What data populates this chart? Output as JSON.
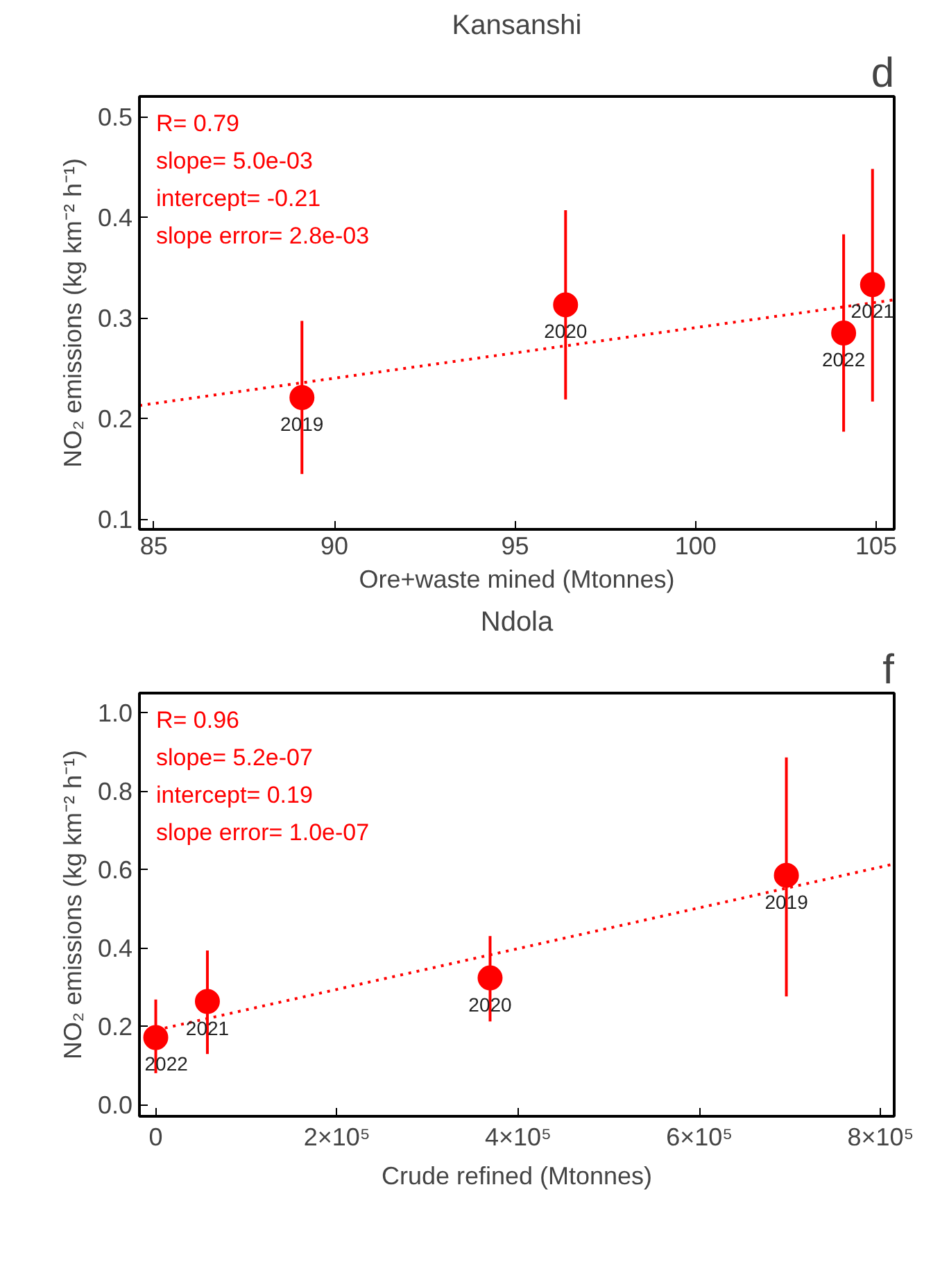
{
  "chart_data": [
    {
      "type": "scatter",
      "title": "Kansanshi",
      "xlabel": "Ore+waste mined (Mtonnes)",
      "ylabel": "NO₂ emissions (kg km⁻² h⁻¹)",
      "xlim": [
        84.6,
        105.5
      ],
      "ylim": [
        0.09,
        0.52
      ],
      "xticks": [
        85,
        90,
        95,
        100,
        105
      ],
      "yticks": [
        0.1,
        0.2,
        0.3,
        0.4,
        0.5
      ],
      "grid": false,
      "series": [
        {
          "marker": "circle",
          "color": "#ff0000",
          "x": [
            89.1,
            96.4,
            104.9,
            104.1
          ],
          "values": [
            0.221,
            0.313,
            0.333,
            0.285
          ],
          "errors": [
            [
              0.145,
              0.297
            ],
            [
              0.219,
              0.407
            ],
            [
              0.217,
              0.448
            ],
            [
              0.187,
              0.383
            ]
          ]
        },
        {
          "type": "line",
          "color": "#ff0000",
          "line_style": "dotted",
          "x": [
            84.6,
            105.5
          ],
          "values": [
            0.213,
            0.318
          ]
        }
      ],
      "annotations": [
        "d",
        "R= 0.79",
        "slope= 5.0e-03",
        "intercept= -0.21",
        "slope error= 2.8e-03",
        {
          "text": "2019",
          "x": 89.1,
          "y": 0.221
        },
        {
          "text": "2020",
          "x": 96.4,
          "y": 0.313
        },
        {
          "text": "2021",
          "x": 104.9,
          "y": 0.333
        },
        {
          "text": "2022",
          "x": 104.1,
          "y": 0.285
        }
      ]
    },
    {
      "type": "scatter",
      "title": "Ndola",
      "xlabel": "Crude refined (Mtonnes)",
      "ylabel": "NO₂ emissions (kg km⁻² h⁻¹)",
      "xlim": [
        -18000,
        815000
      ],
      "ylim": [
        -0.03,
        1.05
      ],
      "xticks": [
        0,
        {
          "value": 200000,
          "label": "2×10⁵"
        },
        {
          "value": 400000,
          "label": "4×10⁵"
        },
        {
          "value": 600000,
          "label": "6×10⁵"
        },
        {
          "value": 800000,
          "label": "8×10⁵"
        }
      ],
      "yticks": [
        {
          "value": 0,
          "label": "0.0"
        },
        0.2,
        0.4,
        0.6,
        0.8,
        {
          "value": 1,
          "label": "1.0"
        }
      ],
      "grid": false,
      "series": [
        {
          "marker": "circle",
          "color": "#ff0000",
          "x": [
            696000,
            369000,
            57000,
            0
          ],
          "values": [
            0.585,
            0.323,
            0.263,
            0.171
          ],
          "errors": [
            [
              0.276,
              0.886
            ],
            [
              0.212,
              0.43
            ],
            [
              0.129,
              0.393
            ],
            [
              0.08,
              0.268
            ]
          ]
        },
        {
          "type": "line",
          "color": "#ff0000",
          "line_style": "dotted",
          "x": [
            10000,
            815000
          ],
          "values": [
            0.195,
            0.614
          ]
        }
      ],
      "annotations": [
        "f",
        "R= 0.96",
        "slope= 5.2e-07",
        "intercept= 0.19",
        "slope error= 1.0e-07",
        {
          "text": "2019",
          "x": 696000,
          "y": 0.585
        },
        {
          "text": "2020",
          "x": 369000,
          "y": 0.323
        },
        {
          "text": "2021",
          "x": 57000,
          "y": 0.263
        },
        {
          "text": "2022",
          "x": 0,
          "y": 0.171
        }
      ]
    }
  ]
}
